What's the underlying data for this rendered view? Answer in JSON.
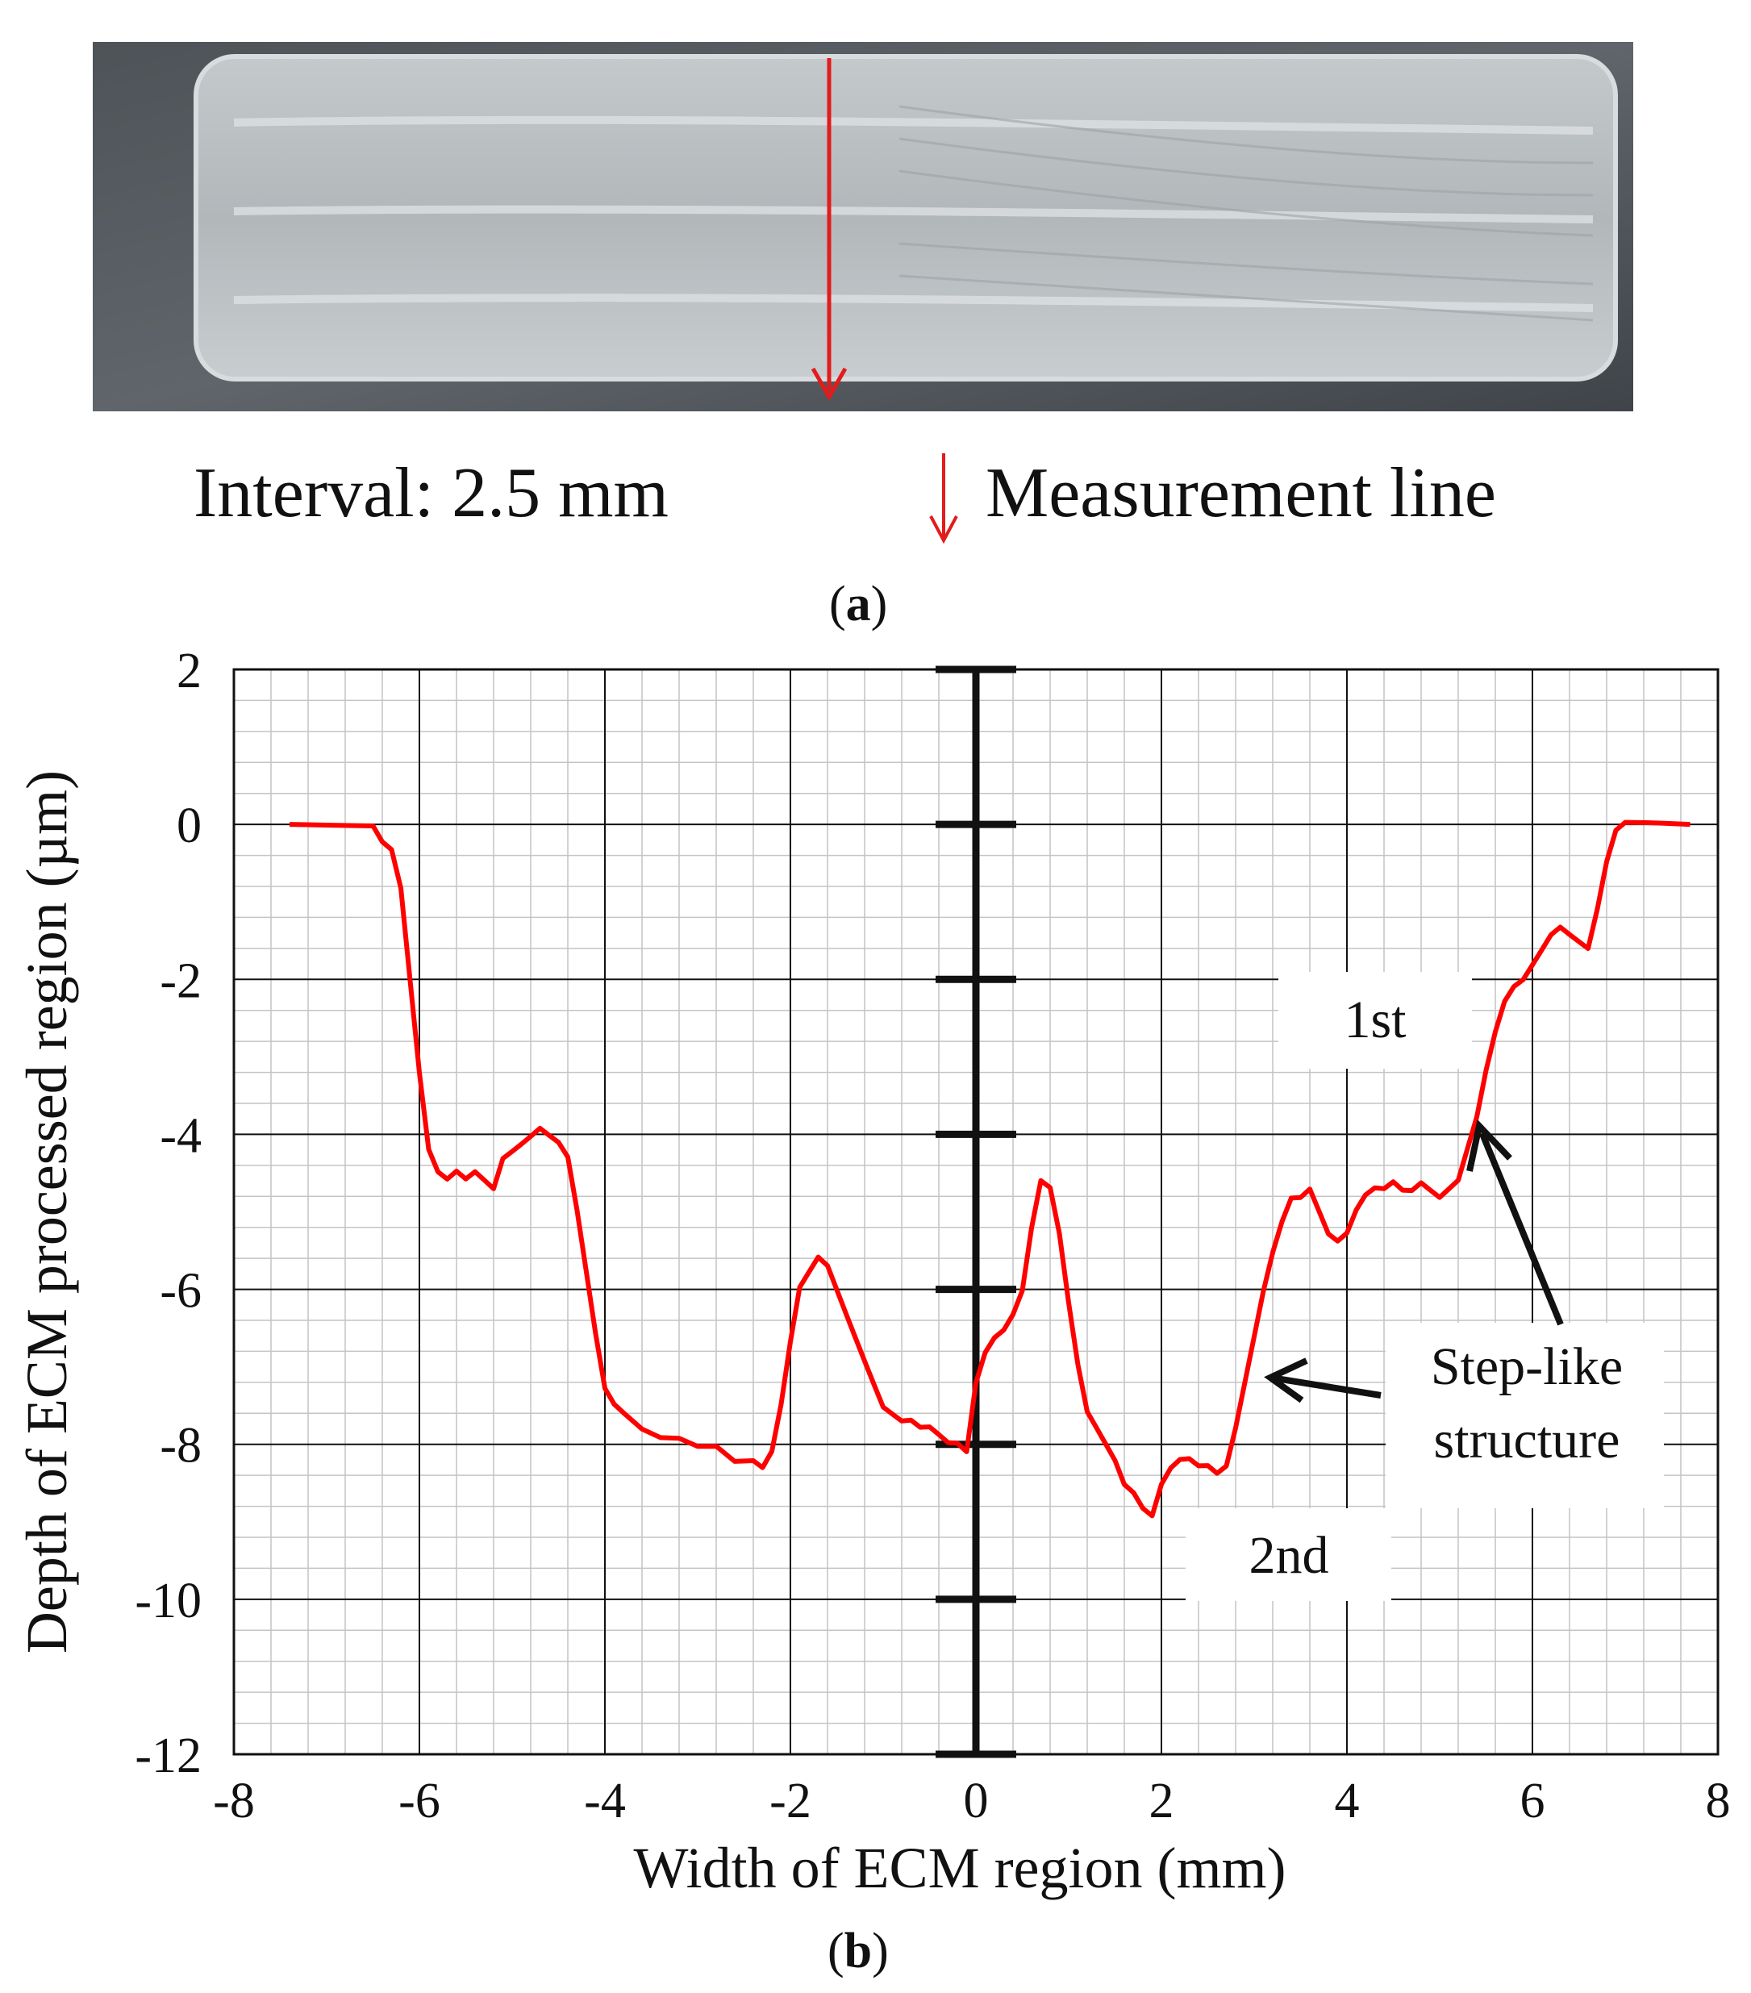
{
  "figure": {
    "panel_a": {
      "label_letter": "a",
      "interval_text": "Interval: 2.5 mm",
      "measurement_line_text": "Measurement line",
      "arrow_color": "#e31b1b"
    },
    "panel_b": {
      "label_letter": "b"
    }
  },
  "chart_data": {
    "type": "line",
    "xlabel": "Width of ECM region (mm)",
    "ylabel": "Depth of ECM processed region (µm)",
    "xlim": [
      -8,
      8
    ],
    "ylim": [
      -12,
      2
    ],
    "x_ticks": [
      -8,
      -6,
      -4,
      -2,
      0,
      2,
      4,
      6,
      8
    ],
    "y_ticks": [
      2,
      0,
      -2,
      -4,
      -6,
      -8,
      -10,
      -12
    ],
    "x_tick_labels": [
      "-8",
      "-6",
      "-4",
      "-2",
      "0",
      "2",
      "4",
      "6",
      "8"
    ],
    "y_tick_labels": [
      "2",
      "0",
      "-2",
      "-4",
      "-6",
      "-8",
      "-10",
      "-12"
    ],
    "grid": true,
    "minor_grid": true,
    "line_color": "#ff0000",
    "series": [
      {
        "x": [
          -7.4,
          -6.9,
          -6.5,
          -6.4,
          -6.3,
          -6.2,
          -6.1,
          -6.0,
          -5.9,
          -5.8,
          -5.7,
          -5.6,
          -5.5,
          -5.4,
          -5.3,
          -5.2,
          -5.1,
          -5.0,
          -4.9,
          -4.8,
          -4.7,
          -4.6,
          -4.5,
          -4.4,
          -4.3,
          -4.2,
          -4.1,
          -4.0,
          -3.9,
          -3.8,
          -3.6,
          -3.4,
          -3.2,
          -3.0,
          -2.8,
          -2.6,
          -2.4,
          -2.3,
          -2.2,
          -2.1,
          -2.0,
          -1.9,
          -1.8,
          -1.7,
          -1.6,
          -1.5,
          -1.4,
          -1.3,
          -1.2,
          -1.1,
          -1.0,
          -0.9,
          -0.8,
          -0.7,
          -0.6,
          -0.5,
          -0.4,
          -0.3,
          -0.2,
          -0.1,
          0.0,
          0.1,
          0.2,
          0.3,
          0.4,
          0.5,
          0.6,
          0.7,
          0.8,
          0.9,
          1.0,
          1.1,
          1.2,
          1.3,
          1.4,
          1.5,
          1.6,
          1.7,
          1.8,
          1.9,
          2.0,
          2.1,
          2.2,
          2.3,
          2.4,
          2.5,
          2.6,
          2.7,
          2.8,
          2.9,
          3.0,
          3.1,
          3.2,
          3.3,
          3.4,
          3.5,
          3.6,
          3.7,
          3.8,
          3.9,
          4.0,
          4.1,
          4.2,
          4.3,
          4.4,
          4.5,
          4.6,
          4.7,
          4.8,
          4.9,
          5.0,
          5.1,
          5.2,
          5.3,
          5.4,
          5.5,
          5.6,
          5.7,
          5.8,
          5.9,
          6.0,
          6.1,
          6.2,
          6.3,
          6.4,
          6.5,
          6.6,
          6.7,
          6.8,
          6.9,
          7.0,
          7.2,
          7.4,
          7.7
        ],
        "y": [
          0.0,
          0.0,
          0.0,
          -0.2,
          -0.3,
          -0.8,
          -2.0,
          -3.2,
          -4.2,
          -4.5,
          -4.6,
          -4.5,
          -4.6,
          -4.5,
          -4.6,
          -4.7,
          -4.3,
          -4.2,
          -4.1,
          -4.0,
          -3.9,
          -4.0,
          -4.1,
          -4.3,
          -5.0,
          -5.8,
          -6.6,
          -7.3,
          -7.5,
          -7.6,
          -7.8,
          -7.9,
          -7.9,
          -8.0,
          -8.0,
          -8.2,
          -8.2,
          -8.3,
          -8.1,
          -7.5,
          -6.7,
          -6.0,
          -5.8,
          -5.6,
          -5.7,
          -6.0,
          -6.3,
          -6.6,
          -6.9,
          -7.2,
          -7.5,
          -7.6,
          -7.7,
          -7.7,
          -7.8,
          -7.8,
          -7.9,
          -8.0,
          -8.0,
          -8.1,
          -7.2,
          -6.8,
          -6.6,
          -6.5,
          -6.3,
          -6.0,
          -5.2,
          -4.6,
          -4.7,
          -5.3,
          -6.2,
          -7.0,
          -7.6,
          -7.8,
          -8.0,
          -8.2,
          -8.5,
          -8.6,
          -8.8,
          -8.9,
          -8.5,
          -8.3,
          -8.2,
          -8.2,
          -8.3,
          -8.3,
          -8.4,
          -8.3,
          -7.8,
          -7.2,
          -6.6,
          -6.0,
          -5.5,
          -5.1,
          -4.8,
          -4.8,
          -4.7,
          -5.0,
          -5.3,
          -5.4,
          -5.3,
          -5.0,
          -4.8,
          -4.7,
          -4.7,
          -4.6,
          -4.7,
          -4.7,
          -4.6,
          -4.7,
          -4.8,
          -4.7,
          -4.6,
          -4.2,
          -3.8,
          -3.2,
          -2.7,
          -2.3,
          -2.1,
          -2.0,
          -1.8,
          -1.6,
          -1.4,
          -1.3,
          -1.4,
          -1.5,
          -1.6,
          -1.1,
          -0.5,
          -0.1,
          0.0,
          0.0,
          0.0,
          0.0
        ]
      }
    ],
    "annotations": [
      "1st",
      "2nd",
      "Step-like",
      "structure"
    ]
  }
}
